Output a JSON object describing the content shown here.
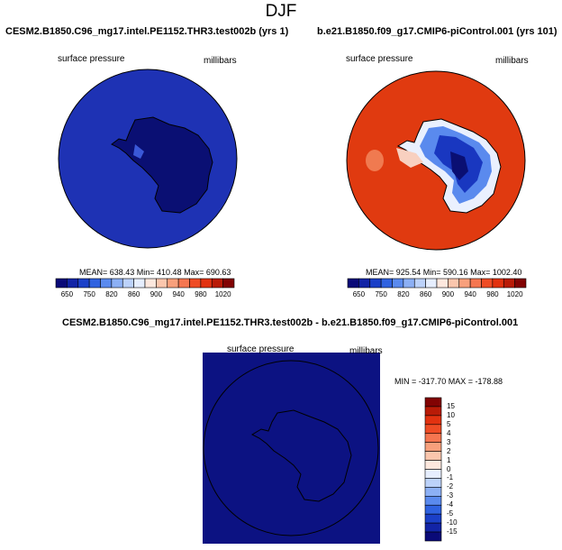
{
  "season_title": "DJF",
  "panels": [
    {
      "title": "CESM2.B1850.C96_mg17.intel.PE1152.THR3.test002b (yrs 1)",
      "left_label": "surface pressure",
      "right_label": "millibars",
      "stats": "MEAN= 638.43  Min= 410.48  Max= 690.63"
    },
    {
      "title": "b.e21.B1850.f09_g17.CMIP6-piControl.001 (yrs 101)",
      "left_label": "surface pressure",
      "right_label": "millibars",
      "stats": "MEAN= 925.54  Min= 590.16  Max= 1002.40"
    },
    {
      "title": "CESM2.B1850.C96_mg17.intel.PE1152.THR3.test002b - b.e21.B1850.f09_g17.CMIP6-piControl.001",
      "left_label": "surface pressure",
      "right_label": "millibars",
      "stats": "MIN = -317.70 MAX = -178.88"
    }
  ],
  "abs_colorbar": {
    "colors": [
      "#0a0a78",
      "#1224a6",
      "#1b40c8",
      "#2f62e0",
      "#5a8aee",
      "#8cb0f5",
      "#bcd2fa",
      "#e6eefe",
      "#fde8de",
      "#fbc6ad",
      "#f8a07c",
      "#f57650",
      "#ef4c25",
      "#e23210",
      "#b91b07",
      "#820303"
    ],
    "tick_labels": [
      "650",
      "750",
      "820",
      "860",
      "900",
      "940",
      "980",
      "1020"
    ]
  },
  "diff_colorbar": {
    "colors": [
      "#820303",
      "#b91b07",
      "#e23210",
      "#ef4c25",
      "#f57650",
      "#f8a07c",
      "#fbc6ad",
      "#fde8de",
      "#e6eefe",
      "#bcd2fa",
      "#8cb0f5",
      "#5a8aee",
      "#2f62e0",
      "#1b40c8",
      "#1224a6",
      "#0a0a78"
    ],
    "tick_labels": [
      "15",
      "10",
      "5",
      "4",
      "3",
      "2",
      "1",
      "0",
      "-1",
      "-2",
      "-3",
      "-4",
      "-5",
      "-10",
      "-15"
    ]
  },
  "map_colors": {
    "panel1_ocean": "#1e32b4",
    "panel1_land": "#0a0f73",
    "panel2_ocean": "#e03a10",
    "panel2_interior": "#1937c0",
    "panel3_fill": "#0c1282"
  }
}
